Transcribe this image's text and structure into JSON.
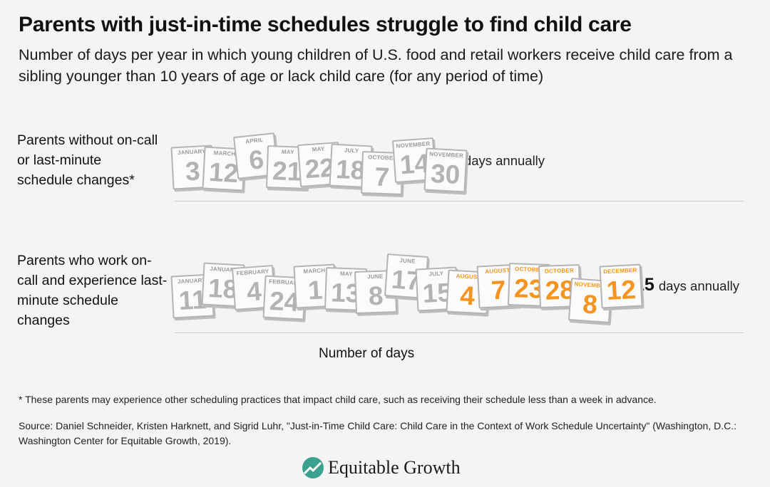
{
  "title": "Parents with just-in-time schedules struggle to find child care",
  "subtitle": "Number of days per year in which young children of U.S. food and retail workers receive child care from a sibling younger than 10 years of age or lack child care (for any period of time)",
  "colors": {
    "highlight": "#f7941d",
    "calendar_gray": "#b3b3b3",
    "logo_green": "#3aa18e"
  },
  "chart_data": {
    "type": "bar",
    "categories": [
      "Parents without on-call or last-minute schedule changes*",
      "Parents who work on-call and experience last-minute schedule changes"
    ],
    "values": [
      9,
      15
    ],
    "value_suffix": "days annually",
    "xlabel": "Number of days",
    "rows": [
      {
        "label": "Parents without on-call or last-minute schedule changes*",
        "total": "9",
        "unit": "days annually",
        "calendars": [
          {
            "month": "JANUARY",
            "day": "3"
          },
          {
            "month": "MARCH",
            "day": "12"
          },
          {
            "month": "APRIL",
            "day": "6"
          },
          {
            "month": "MAY",
            "day": "21"
          },
          {
            "month": "MAY",
            "day": "22"
          },
          {
            "month": "JULY",
            "day": "18"
          },
          {
            "month": "OCTOBER",
            "day": "7"
          },
          {
            "month": "NOVEMBER",
            "day": "14"
          },
          {
            "month": "NOVEMBER",
            "day": "30"
          }
        ]
      },
      {
        "label": "Parents who work on-call and experience last-minute schedule changes",
        "total": "15",
        "unit": "days annually",
        "calendars": [
          {
            "month": "JANUARY",
            "day": "11"
          },
          {
            "month": "JANUARY",
            "day": "18"
          },
          {
            "month": "FEBRUARY",
            "day": "4"
          },
          {
            "month": "FEBRUARY",
            "day": "24"
          },
          {
            "month": "MARCH",
            "day": "1"
          },
          {
            "month": "MAY",
            "day": "13"
          },
          {
            "month": "JUNE",
            "day": "8"
          },
          {
            "month": "JUNE",
            "day": "17"
          },
          {
            "month": "JULY",
            "day": "15"
          },
          {
            "month": "AUGUST",
            "day": "4",
            "highlight": true
          },
          {
            "month": "AUGUST",
            "day": "7",
            "highlight": true
          },
          {
            "month": "OCTOBER",
            "day": "23",
            "highlight": true
          },
          {
            "month": "OCTOBER",
            "day": "28",
            "highlight": true
          },
          {
            "month": "NOVEMBER",
            "day": "8",
            "highlight": true
          },
          {
            "month": "DECEMBER",
            "day": "12",
            "highlight": true
          }
        ]
      }
    ]
  },
  "footnote": "* These parents may experience other scheduling practices that impact child care, such as receiving their schedule less than a week in advance.",
  "source": "Source: Daniel Schneider, Kristen Harknett, and Sigrid Luhr, \"Just-in-Time Child Care: Child Care in the Context of Work Schedule Uncertainty\" (Washington, D.C.: Washington Center for Equitable Growth, 2019).",
  "logo": {
    "text": "Equitable Growth",
    "icon": "equitable-growth-logo-icon"
  }
}
